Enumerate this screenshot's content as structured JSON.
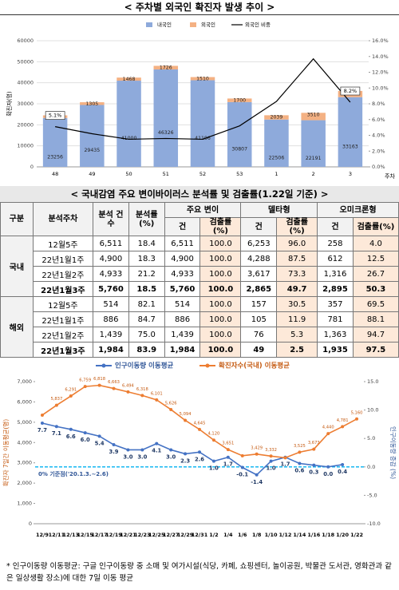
{
  "chart_data": [
    {
      "type": "bar",
      "title": "< 주차별 외국인 확진자 발생 추이 >",
      "y_label": "확진자(명)",
      "x_label": "주차",
      "stacked": true,
      "categories": [
        "48",
        "49",
        "50",
        "51",
        "52",
        "53",
        "1",
        "2",
        "3"
      ],
      "series": [
        {
          "name": "내국인",
          "color": "#8eaadb",
          "values": [
            23256,
            29435,
            41000,
            46326,
            41196,
            30807,
            22506,
            22191,
            33163
          ]
        },
        {
          "name": "외국인",
          "color": "#f4b183",
          "values": [
            1253,
            1305,
            1468,
            1726,
            1510,
            1700,
            2039,
            3510,
            2958
          ]
        },
        {
          "name": "외국인 비중",
          "type": "line",
          "axis": "y2",
          "color": "#000000",
          "values": [
            5.1,
            4.2,
            3.5,
            3.6,
            3.5,
            5.2,
            8.3,
            13.7,
            8.2
          ],
          "value_labels": [
            "5.1%",
            null,
            null,
            null,
            null,
            null,
            null,
            null,
            "8.2%"
          ]
        }
      ],
      "ylim": [
        0,
        60000
      ],
      "yticks": [
        0,
        10000,
        20000,
        30000,
        40000,
        50000,
        60000
      ],
      "y2lim": [
        0,
        16
      ],
      "y2ticks": [
        {
          "value": 0,
          "label": "0.0%"
        },
        {
          "value": 2,
          "label": "2.0%"
        },
        {
          "value": 4,
          "label": "4.0%"
        },
        {
          "value": 6,
          "label": "6.0%"
        },
        {
          "value": 8,
          "label": "8.0%"
        },
        {
          "value": 10,
          "label": "10.0%"
        },
        {
          "value": 12,
          "label": "12.0%"
        },
        {
          "value": 14,
          "label": "14.0%"
        },
        {
          "value": 16,
          "label": "16.0%"
        }
      ]
    },
    {
      "type": "line",
      "y_label": "확진자 7일간 이동평균(명)",
      "y2_label": "인구이동량 증감 (%)",
      "annotation": "0% 기준점('20.1.3.~2.6)",
      "reference_y2": 0,
      "categories": [
        "12/9",
        "12/11",
        "12/13",
        "12/15",
        "12/17",
        "12/19",
        "12/21",
        "12/23",
        "12/25",
        "12/27",
        "12/29",
        "12/31",
        "1/2",
        "1/4",
        "1/6",
        "1/8",
        "1/10",
        "1/12",
        "1/14",
        "1/16",
        "1/18",
        "1/20",
        "1/22"
      ],
      "series": [
        {
          "name": "인구이동량 이동평균",
          "axis": "y2",
          "color": "#4472c4",
          "values": [
            7.7,
            7.1,
            6.6,
            6.0,
            5.4,
            3.9,
            3.0,
            3.0,
            4.1,
            3.0,
            2.3,
            2.6,
            1.0,
            1.7,
            -0.1,
            -1.4,
            1.0,
            1.7,
            0.6,
            0.3,
            0.0,
            0.4,
            null
          ],
          "value_labels": [
            "7.7",
            "7.1",
            "6.6",
            "6.0",
            "5.4",
            "3.9",
            "3.0",
            "3.0",
            "4.1",
            "3.0",
            "2.3",
            "2.6",
            "1.0",
            "1.7",
            "-0.1",
            "-1.4",
            "1.0",
            "1.7",
            "0.6",
            "0.3",
            "0.0",
            "0.4",
            null
          ]
        },
        {
          "name": "확진자수(국내) 이동평균",
          "color": "#ed7d31",
          "values": [
            5350,
            5837,
            6291,
            6759,
            6818,
            6663,
            6494,
            6318,
            6101,
            5626,
            5094,
            4645,
            4120,
            3651,
            3350,
            3429,
            3332,
            3250,
            3525,
            3673,
            4440,
            4781,
            5160
          ],
          "value_labels": [
            null,
            "5,837",
            "6,291",
            "6,759",
            "6,818",
            "6,663",
            "6,494",
            "6,318",
            "6,101",
            "5,626",
            "5,094",
            "4,645",
            "4,120",
            "3,651",
            null,
            "3,429",
            "3,332",
            null,
            "3,525",
            "3,673",
            "4,440",
            "4,781",
            "5,160"
          ]
        }
      ],
      "ylim": [
        0,
        7000
      ],
      "yticks": [
        0,
        {
          "value": 1000,
          "label": "1,000"
        },
        {
          "value": 2000,
          "label": "2,000"
        },
        {
          "value": 3000,
          "label": "3,000"
        },
        {
          "value": 4000,
          "label": "4,000"
        },
        {
          "value": 5000,
          "label": "5,000"
        },
        {
          "value": 6000,
          "label": "6,000"
        },
        {
          "value": 7000,
          "label": "7,000"
        }
      ],
      "y2lim": [
        -10,
        15
      ],
      "y2ticks": [
        {
          "value": -10,
          "label": "-10.0"
        },
        {
          "value": -5,
          "label": "-5.0"
        },
        {
          "value": 0,
          "label": "0.0"
        },
        {
          "value": 5,
          "label": "5.0"
        },
        {
          "value": 10,
          "label": "10.0"
        },
        {
          "value": 15,
          "label": "15.0"
        }
      ]
    }
  ],
  "table": {
    "title": "< 국내감염 주요 변이바이러스 분석률 및 검출률(1.22일 기준) >",
    "columns": [
      "구분",
      "분석주차",
      "분석 건수",
      "분석률 (%)"
    ],
    "groups": [
      "주요 변이",
      "델타형",
      "오미크론형"
    ],
    "subcolumns": [
      "건",
      "검출률(%)"
    ],
    "sections": [
      {
        "name": "국내",
        "rows": [
          [
            "12월5주",
            "6,511",
            "18.4",
            "6,511",
            "100.0",
            "6,253",
            "96.0",
            "258",
            "4.0"
          ],
          [
            "22년1월1주",
            "4,900",
            "18.3",
            "4,900",
            "100.0",
            "4,288",
            "87.5",
            "612",
            "12.5"
          ],
          [
            "22년1월2주",
            "4,933",
            "21.2",
            "4,933",
            "100.0",
            "3,617",
            "73.3",
            "1,316",
            "26.7"
          ],
          [
            "22년1월3주",
            "5,760",
            "18.5",
            "5,760",
            "100.0",
            "2,865",
            "49.7",
            "2,895",
            "50.3"
          ]
        ]
      },
      {
        "name": "해외",
        "rows": [
          [
            "12월5주",
            "514",
            "82.1",
            "514",
            "100.0",
            "157",
            "30.5",
            "357",
            "69.5"
          ],
          [
            "22년1월1주",
            "886",
            "84.7",
            "886",
            "100.0",
            "105",
            "11.9",
            "781",
            "88.1"
          ],
          [
            "22년1월2주",
            "1,439",
            "75.0",
            "1,439",
            "100.0",
            "76",
            "5.3",
            "1,363",
            "94.7"
          ],
          [
            "22년1월3주",
            "1,984",
            "83.9",
            "1,984",
            "100.0",
            "49",
            "2.5",
            "1,935",
            "97.5"
          ]
        ]
      }
    ]
  },
  "footnote": "* 인구이동량 이동평균: 구글 인구이동량 중 소매 및 여가시설(식당, 카페, 쇼핑센터, 놀이공원, 박물관 도서관, 영화관과 같은 일상생활 장소)에 대한 7일 이동 평균"
}
